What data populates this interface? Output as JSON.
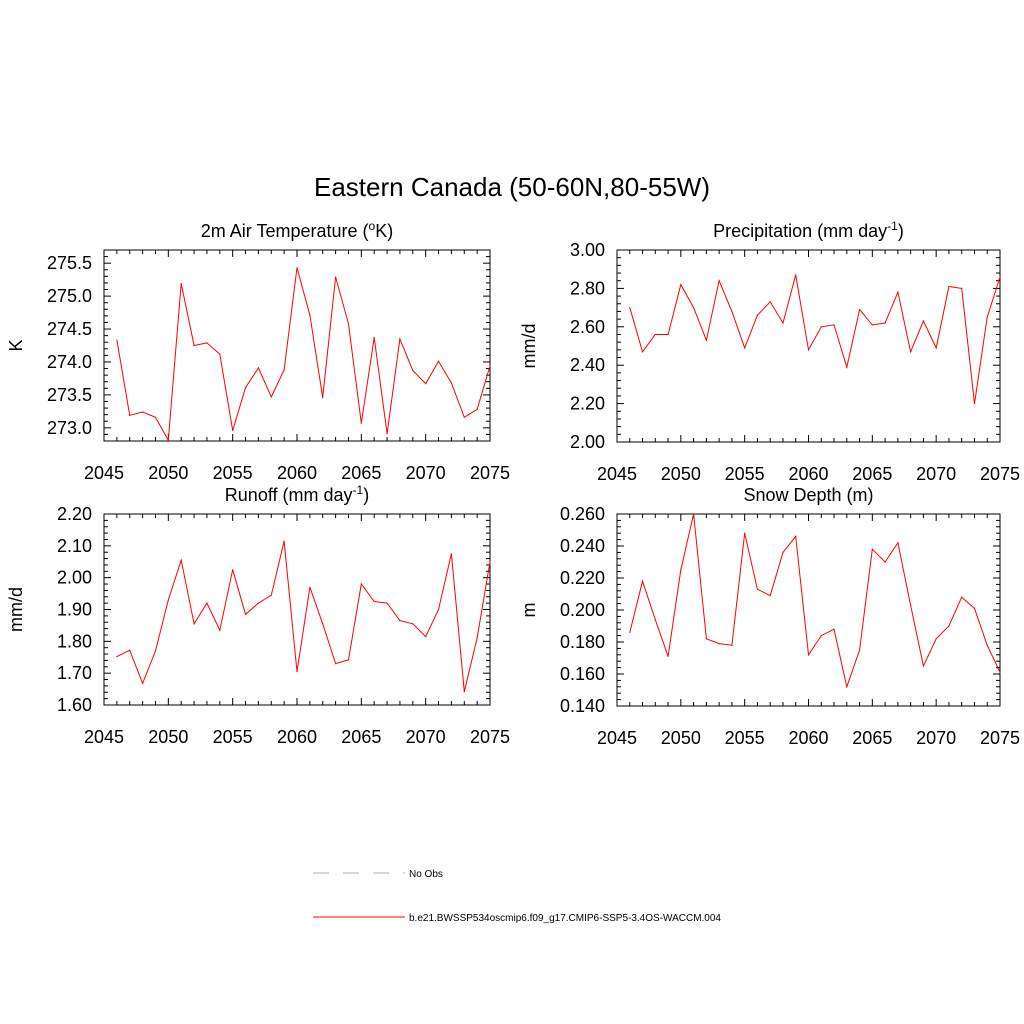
{
  "title": "Eastern Canada (50-60N,80-55W)",
  "chart_data": [
    {
      "type": "line",
      "title_main": "2m Air Temperature (",
      "title_sup": "o",
      "title_tail": "K)",
      "ylabel": "K",
      "xlabel": "",
      "xlim": [
        2045,
        2075
      ],
      "ylim": [
        272.8,
        275.7
      ],
      "xticks": [
        "2045",
        "2050",
        "2055",
        "2060",
        "2065",
        "2070",
        "2075"
      ],
      "yticks": [
        "273.0",
        "273.5",
        "274.0",
        "274.5",
        "275.0",
        "275.5"
      ],
      "series": [
        {
          "name": "b.e21.BWSSP534oscmip6.f09_g17.CMIP6-SSP5-3.4OS-WACCM.004",
          "color": "#ff0000",
          "x": [
            2046,
            2047,
            2048,
            2049,
            2050,
            2051,
            2052,
            2053,
            2054,
            2055,
            2056,
            2057,
            2058,
            2059,
            2060,
            2061,
            2062,
            2063,
            2064,
            2065,
            2066,
            2067,
            2068,
            2069,
            2070,
            2071,
            2072,
            2073,
            2074,
            2075
          ],
          "values": [
            274.33,
            273.19,
            273.24,
            273.16,
            272.81,
            275.19,
            274.25,
            274.29,
            274.12,
            272.96,
            273.61,
            273.91,
            273.47,
            273.88,
            275.43,
            274.71,
            273.46,
            275.29,
            274.58,
            273.07,
            274.37,
            272.91,
            274.35,
            273.87,
            273.67,
            274.01,
            273.68,
            273.16,
            273.28,
            273.94
          ]
        }
      ]
    },
    {
      "type": "line",
      "title_main": "Precipitation (mm day",
      "title_sup": "-1",
      "title_tail": ")",
      "ylabel": "mm/d",
      "xlabel": "",
      "xlim": [
        2045,
        2075
      ],
      "ylim": [
        2.0,
        3.0
      ],
      "xticks": [
        "2045",
        "2050",
        "2055",
        "2060",
        "2065",
        "2070",
        "2075"
      ],
      "yticks": [
        "2.00",
        "2.20",
        "2.40",
        "2.60",
        "2.80",
        "3.00"
      ],
      "series": [
        {
          "name": "b.e21.BWSSP534oscmip6.f09_g17.CMIP6-SSP5-3.4OS-WACCM.004",
          "color": "#ff0000",
          "x": [
            2046,
            2047,
            2048,
            2049,
            2050,
            2051,
            2052,
            2053,
            2054,
            2055,
            2056,
            2057,
            2058,
            2059,
            2060,
            2061,
            2062,
            2063,
            2064,
            2065,
            2066,
            2067,
            2068,
            2069,
            2070,
            2071,
            2072,
            2073,
            2074,
            2075
          ],
          "values": [
            2.7,
            2.47,
            2.56,
            2.56,
            2.82,
            2.7,
            2.53,
            2.84,
            2.68,
            2.49,
            2.66,
            2.73,
            2.62,
            2.87,
            2.48,
            2.6,
            2.61,
            2.39,
            2.69,
            2.61,
            2.62,
            2.78,
            2.47,
            2.63,
            2.49,
            2.81,
            2.8,
            2.2,
            2.65,
            2.86
          ]
        }
      ]
    },
    {
      "type": "line",
      "title_main": "Runoff (mm day",
      "title_sup": "-1",
      "title_tail": ")",
      "ylabel": "mm/d",
      "xlabel": "",
      "xlim": [
        2045,
        2075
      ],
      "ylim": [
        1.6,
        2.2
      ],
      "xticks": [
        "2045",
        "2050",
        "2055",
        "2060",
        "2065",
        "2070",
        "2075"
      ],
      "yticks": [
        "1.60",
        "1.70",
        "1.80",
        "1.90",
        "2.00",
        "2.10",
        "2.20"
      ],
      "series": [
        {
          "name": "b.e21.BWSSP534oscmip6.f09_g17.CMIP6-SSP5-3.4OS-WACCM.004",
          "color": "#ff0000",
          "x": [
            2046,
            2047,
            2048,
            2049,
            2050,
            2051,
            2052,
            2053,
            2054,
            2055,
            2056,
            2057,
            2058,
            2059,
            2060,
            2061,
            2062,
            2063,
            2064,
            2065,
            2066,
            2067,
            2068,
            2069,
            2070,
            2071,
            2072,
            2073,
            2074,
            2075
          ],
          "values": [
            1.752,
            1.772,
            1.668,
            1.77,
            1.93,
            2.055,
            1.855,
            1.92,
            1.835,
            2.025,
            1.885,
            1.92,
            1.945,
            2.115,
            1.705,
            1.97,
            1.855,
            1.73,
            1.742,
            1.98,
            1.925,
            1.92,
            1.865,
            1.855,
            1.815,
            1.9,
            2.075,
            1.642,
            1.81,
            2.05
          ]
        }
      ]
    },
    {
      "type": "line",
      "title_main": "Snow Depth (m)",
      "title_sup": "",
      "title_tail": "",
      "ylabel": "m",
      "xlabel": "",
      "xlim": [
        2045,
        2075
      ],
      "ylim": [
        0.14,
        0.26
      ],
      "xticks": [
        "2045",
        "2050",
        "2055",
        "2060",
        "2065",
        "2070",
        "2075"
      ],
      "yticks": [
        "0.140",
        "0.160",
        "0.180",
        "0.200",
        "0.220",
        "0.240",
        "0.260"
      ],
      "series": [
        {
          "name": "b.e21.BWSSP534oscmip6.f09_g17.CMIP6-SSP5-3.4OS-WACCM.004",
          "color": "#ff0000",
          "x": [
            2046,
            2047,
            2048,
            2049,
            2050,
            2051,
            2052,
            2053,
            2054,
            2055,
            2056,
            2057,
            2058,
            2059,
            2060,
            2061,
            2062,
            2063,
            2064,
            2065,
            2066,
            2067,
            2068,
            2069,
            2070,
            2071,
            2072,
            2073,
            2074,
            2075
          ],
          "values": [
            0.186,
            0.218,
            0.194,
            0.171,
            0.225,
            0.26,
            0.182,
            0.179,
            0.178,
            0.248,
            0.213,
            0.209,
            0.236,
            0.246,
            0.172,
            0.184,
            0.188,
            0.152,
            0.175,
            0.238,
            0.23,
            0.242,
            0.203,
            0.165,
            0.182,
            0.19,
            0.208,
            0.201,
            0.178,
            0.161
          ]
        }
      ]
    }
  ],
  "legend": [
    {
      "label": "No Obs",
      "color": "#a8a8e8",
      "dash": "dashed"
    },
    {
      "label": "b.e21.BWSSP534oscmip6.f09_g17.CMIP6-SSP5-3.4OS-WACCM.004",
      "color": "#ff0000",
      "dash": "solid"
    }
  ]
}
